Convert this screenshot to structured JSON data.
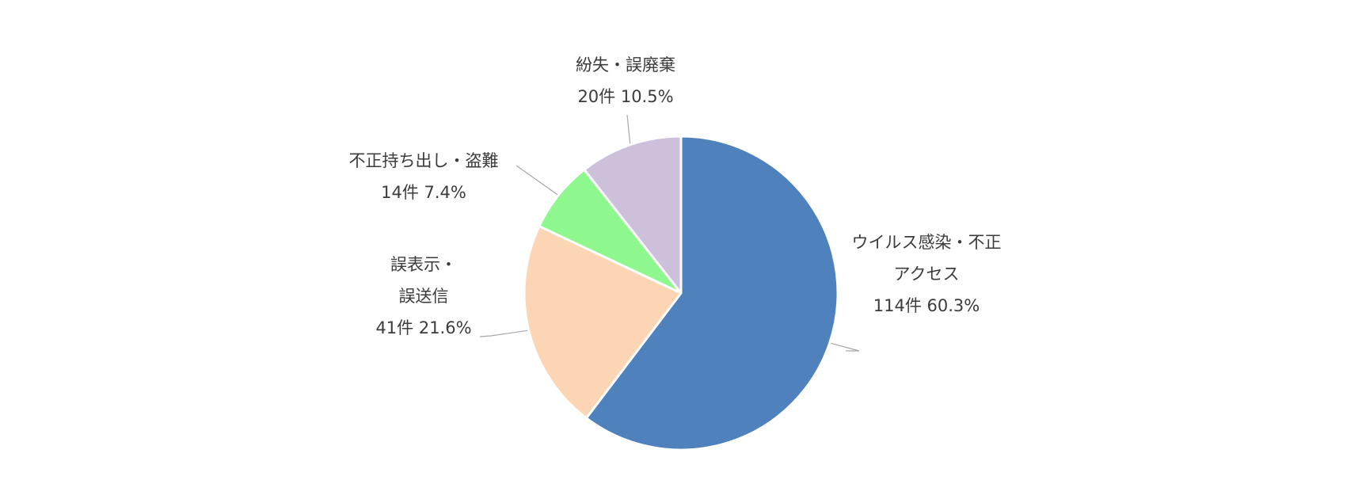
{
  "chart_data": {
    "type": "pie",
    "slices": [
      {
        "name_lines": [
          "ウイルス感染・不正",
          "アクセス"
        ],
        "value_text": "114件 60.3%",
        "count": 114,
        "percent": 60.3,
        "color": "#4f81bd"
      },
      {
        "name_lines": [
          "誤表示・",
          "誤送信"
        ],
        "value_text": "41件 21.6%",
        "count": 41,
        "percent": 21.6,
        "color": "#fcd5b5"
      },
      {
        "name_lines": [
          "不正持ち出し・盗難"
        ],
        "value_text": "14件 7.4%",
        "count": 14,
        "percent": 7.4,
        "color": "#8ef78e"
      },
      {
        "name_lines": [
          "紛失・誤廃棄"
        ],
        "value_text": "20件 10.5%",
        "count": 20,
        "percent": 10.5,
        "color": "#ccc0da"
      }
    ],
    "start_angle_deg": 0,
    "direction": "clockwise",
    "slice_border_color": "#ffffff",
    "leader_line_color": "#a6a6a6"
  }
}
